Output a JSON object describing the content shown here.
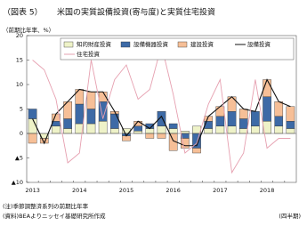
{
  "chart_data": {
    "type": "combo",
    "figure_label": "（図表 5）",
    "title": "米国の実質設備投資(寄与度)と実質住宅投資",
    "y_label": "（前期比年率、%）",
    "categories": [
      "2013",
      null,
      null,
      null,
      "2014",
      null,
      null,
      null,
      "2015",
      null,
      null,
      null,
      "2016",
      null,
      null,
      null,
      "2017",
      null,
      null,
      null,
      "2018",
      null,
      null
    ],
    "series": [
      {
        "name": "知的財産投資",
        "type": "bar",
        "color": "#eef2c8",
        "values": [
          3,
          -1,
          1.5,
          1,
          2,
          2,
          2.5,
          1,
          1,
          0.5,
          1,
          1.5,
          1,
          0.5,
          1.5,
          1,
          1.5,
          1.5,
          1,
          1.5,
          2.5,
          1.5,
          1
        ]
      },
      {
        "name": "設備機器投資",
        "type": "bar",
        "color": "#3d6aa6",
        "values": [
          2,
          0,
          1,
          2,
          4,
          3,
          4,
          3,
          -0.5,
          1,
          1,
          3,
          1,
          -1,
          -3,
          1.5,
          2,
          3,
          2,
          3,
          5,
          2,
          1.5
        ]
      },
      {
        "name": "建設投資",
        "type": "bar",
        "color": "#f6bf97",
        "values": [
          -2,
          -1,
          1.5,
          3.5,
          3,
          3.5,
          2,
          0.5,
          -1,
          1,
          -1,
          -1,
          -3.5,
          -2,
          -1,
          1,
          2,
          3,
          2,
          0,
          3.5,
          3,
          3
        ]
      },
      {
        "name": "設備投資",
        "type": "line",
        "color": "#111111",
        "values": [
          3,
          -2,
          4,
          6.5,
          9,
          8.5,
          8.5,
          4.5,
          -0.5,
          2.5,
          1,
          3.5,
          -1.5,
          -2.5,
          -2.5,
          3.5,
          5.5,
          7.5,
          5,
          4.5,
          11,
          6.5,
          5.5
        ]
      },
      {
        "name": "住宅投資",
        "type": "line",
        "color": "#e6a0b0",
        "values": [
          15,
          13,
          7,
          -6,
          -4,
          15,
          3,
          11,
          14,
          7,
          9,
          18,
          8,
          -4,
          -2,
          6,
          11,
          -8,
          -4,
          11,
          -3,
          -1,
          -1
        ]
      }
    ],
    "ylim": [
      -10,
      20
    ],
    "yticks": [
      {
        "value": -10,
        "label": "▲10"
      },
      {
        "value": -5,
        "label": "▲5"
      },
      0,
      5,
      10,
      15,
      20
    ],
    "grid": false,
    "note": "(注)季節調整済系列の前期比年率",
    "source": "(資料)BEAよりニッセイ基礎研究所作成",
    "x_unit": "(四半期)"
  }
}
